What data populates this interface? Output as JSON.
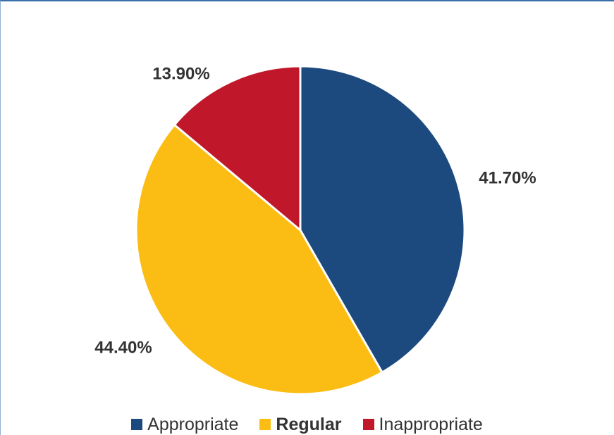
{
  "chart_data": {
    "type": "pie",
    "title": "",
    "slices": [
      {
        "label": "Appropriate",
        "value": 41.7,
        "display": "41.70%",
        "color": "#1d4a7e"
      },
      {
        "label": "Regular",
        "value": 44.4,
        "display": "44.40%",
        "color": "#fbbd13"
      },
      {
        "label": "Inappropriate",
        "value": 13.9,
        "display": "13.90%",
        "color": "#c0182a"
      }
    ],
    "start_angle_deg": 0,
    "direction": "clockwise",
    "legend_placement": "bottom",
    "legend_highlight": "Regular"
  }
}
